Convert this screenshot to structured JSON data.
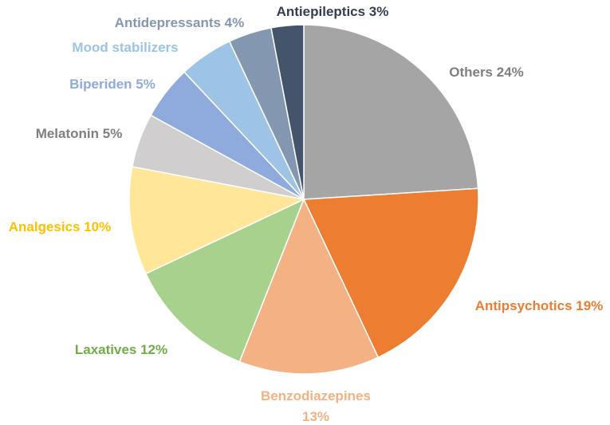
{
  "chart_data": {
    "type": "pie",
    "title": "",
    "slices": [
      {
        "name": "Others",
        "value": 24,
        "color": "#a5a5a5",
        "label_lines": [
          "Others 24%"
        ],
        "label_color": "#7f7f7f"
      },
      {
        "name": "Antipsychotics",
        "value": 19,
        "color": "#ed7d31",
        "label_lines": [
          "Antipsychotics 19%"
        ],
        "label_color": "#ed7d31"
      },
      {
        "name": "Benzodiazepines",
        "value": 13,
        "color": "#f4b183",
        "label_lines": [
          "Benzodiazepines",
          "13%"
        ],
        "label_color": "#f4b183"
      },
      {
        "name": "Laxatives",
        "value": 12,
        "color": "#a9d18e",
        "label_lines": [
          "Laxatives 12%"
        ],
        "label_color": "#70ad47"
      },
      {
        "name": "Analgesics",
        "value": 10,
        "color": "#ffe699",
        "label_lines": [
          "Analgesics 10%"
        ],
        "label_color": "#ffc000"
      },
      {
        "name": "Melatonin",
        "value": 5,
        "color": "#d0cece",
        "label_lines": [
          "Melatonin 5%"
        ],
        "label_color": "#7f7f7f"
      },
      {
        "name": "Biperiden",
        "value": 5,
        "color": "#8faadc",
        "label_lines": [
          "Biperiden 5%"
        ],
        "label_color": "#8faadc"
      },
      {
        "name": "Mood stabilizers",
        "value": 5,
        "color": "#9dc3e6",
        "label_lines": [
          "Mood stabilizers"
        ],
        "label_color": "#9dc3e6"
      },
      {
        "name": "Antidepressants",
        "value": 4,
        "color": "#8497b0",
        "label_lines": [
          "Antidepressants 4%"
        ],
        "label_color": "#8497b0"
      },
      {
        "name": "Antiepileptics",
        "value": 3,
        "color": "#44546a",
        "label_lines": [
          "Antiepileptics 3%"
        ],
        "label_color": "#333f50"
      }
    ]
  }
}
